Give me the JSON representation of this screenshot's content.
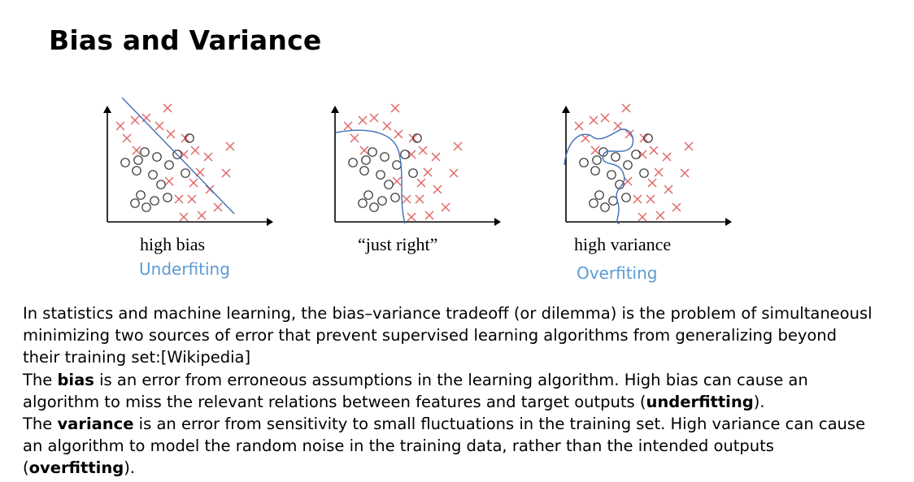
{
  "slide": {
    "title": "Bias and Variance"
  },
  "panels": [
    {
      "caption": "high bias",
      "label": "Underfiting",
      "model": "linear"
    },
    {
      "caption": "“just right”",
      "label": "",
      "model": "curve"
    },
    {
      "caption": "high variance",
      "label": "Overfiting",
      "model": "wiggly"
    }
  ],
  "marker_colors": {
    "cross": "#e06666",
    "circle": "#333333",
    "boundary": "#3d6fb6",
    "axis": "#000000"
  },
  "body": {
    "p1_line1": "In statistics and machine learning, the bias–variance tradeoff (or dilemma) is the problem of simultaneousl",
    "p1_line2": "minimizing two sources of error that prevent supervised learning algorithms from generalizing beyond",
    "p1_line3": "their training set:[Wikipedia]",
    "p2_a": "The ",
    "p2_bold": "bias",
    "p2_b": " is an error from erroneous assumptions in the learning algorithm. High bias can cause an",
    "p2_line2_a": "algorithm to miss the relevant relations between features and target outputs (",
    "p2_line2_bold": "underfitting",
    "p2_line2_b": ").",
    "p3_a": "The ",
    "p3_bold": "variance",
    "p3_b": " is an error from sensitivity to small fluctuations in the training set. High variance can cause",
    "p3_line2": "an algorithm to model the random noise in the training data, rather than the intended outputs",
    "p3_line3_a": "(",
    "p3_line3_bold": "overfitting",
    "p3_line3_b": ")."
  }
}
